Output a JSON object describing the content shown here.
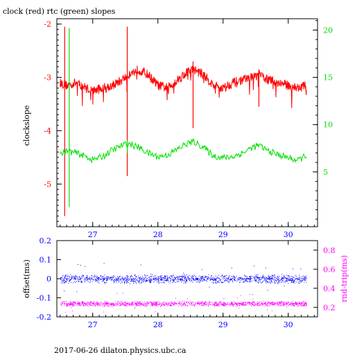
{
  "header": {
    "title": "clock (red) rtc (green) slopes",
    "footer": "2017-06-26  dilaton.physics.ubc.ca"
  },
  "colors": {
    "red": "#ff0000",
    "green": "#00e000",
    "blue": "#0000ff",
    "magenta": "#ff00ff",
    "black": "#000000"
  },
  "chart_data": [
    {
      "type": "line",
      "title": "clock (red) rtc (green) slopes",
      "ylabel": "clockslope",
      "xlim": [
        26.45,
        30.45
      ],
      "ylim": [
        -5.8,
        -1.9
      ],
      "ylim_right": [
        -0.8,
        21.2
      ],
      "x_ticks": [
        "27",
        "28",
        "29",
        "30"
      ],
      "y_ticks_left": [
        "-2",
        "-3",
        "-4",
        "-5"
      ],
      "y_ticks_right": [
        "20",
        "15",
        "10",
        "5"
      ],
      "series": [
        {
          "name": "clock",
          "axis": "left",
          "color": "#ff0000",
          "x": [
            26.5,
            26.6,
            26.75,
            26.9,
            27.0,
            27.15,
            27.3,
            27.45,
            27.55,
            27.7,
            27.85,
            28.0,
            28.15,
            28.3,
            28.45,
            28.55,
            28.7,
            28.85,
            29.0,
            29.15,
            29.3,
            29.45,
            29.55,
            29.7,
            29.85,
            30.0,
            30.15,
            30.28
          ],
          "y": [
            -3.1,
            -3.15,
            -3.1,
            -3.2,
            -3.25,
            -3.2,
            -3.15,
            -3.05,
            -2.95,
            -2.85,
            -2.95,
            -3.15,
            -3.2,
            -3.05,
            -2.9,
            -2.85,
            -2.95,
            -3.15,
            -3.2,
            -3.1,
            -3.05,
            -3.0,
            -2.95,
            -3.05,
            -3.1,
            -3.15,
            -3.2,
            -3.15
          ],
          "spikes": [
            {
              "x": 26.57,
              "low": -5.6,
              "high": -2.05
            },
            {
              "x": 27.53,
              "low": -4.85,
              "high": -2.05
            },
            {
              "x": 28.54,
              "low": -3.95,
              "high": -2.7
            },
            {
              "x": 29.55,
              "low": -3.55,
              "high": -2.85
            }
          ]
        },
        {
          "name": "rtc",
          "axis": "right",
          "color": "#00e000",
          "x": [
            26.5,
            26.6,
            26.75,
            26.9,
            27.0,
            27.15,
            27.3,
            27.45,
            27.55,
            27.7,
            27.85,
            28.0,
            28.15,
            28.3,
            28.45,
            28.55,
            28.7,
            28.85,
            29.0,
            29.15,
            29.3,
            29.45,
            29.55,
            29.7,
            29.85,
            30.0,
            30.15,
            30.28
          ],
          "y": [
            6.9,
            7.2,
            7.0,
            6.6,
            6.3,
            6.6,
            7.3,
            7.8,
            8.0,
            7.6,
            7.0,
            6.6,
            6.8,
            7.4,
            8.0,
            8.2,
            7.6,
            6.7,
            6.5,
            6.6,
            7.0,
            7.6,
            7.8,
            7.2,
            6.8,
            6.5,
            6.2,
            6.8
          ],
          "spikes": [
            {
              "x": 26.64,
              "low": 1.3,
              "high": 20.2
            },
            {
              "x": 27.53,
              "low": 7.0,
              "high": 8.4
            }
          ]
        }
      ]
    },
    {
      "type": "scatter",
      "ylabel": "offset(ms)",
      "ylabel_right": "rnd-trip(ms)",
      "xlim": [
        26.45,
        30.45
      ],
      "ylim": [
        -0.2,
        0.2
      ],
      "ylim_right": [
        0.1,
        0.9
      ],
      "x_ticks": [
        "27",
        "28",
        "29",
        "30"
      ],
      "y_ticks_left": [
        "0.2",
        "0.1",
        "0",
        "-0.1",
        "-0.2"
      ],
      "y_ticks_right": [
        "0.8",
        "0.6",
        "0.4",
        "0.2"
      ],
      "series": [
        {
          "name": "offset",
          "axis": "left",
          "color": "#0000ff",
          "x_range": [
            26.5,
            30.28
          ],
          "center": 0.0,
          "spread": 0.025
        },
        {
          "name": "rnd-trip",
          "axis": "right",
          "color": "#ff00ff",
          "x_range": [
            26.5,
            30.28
          ],
          "center": 0.24,
          "spread": 0.03
        }
      ]
    }
  ]
}
